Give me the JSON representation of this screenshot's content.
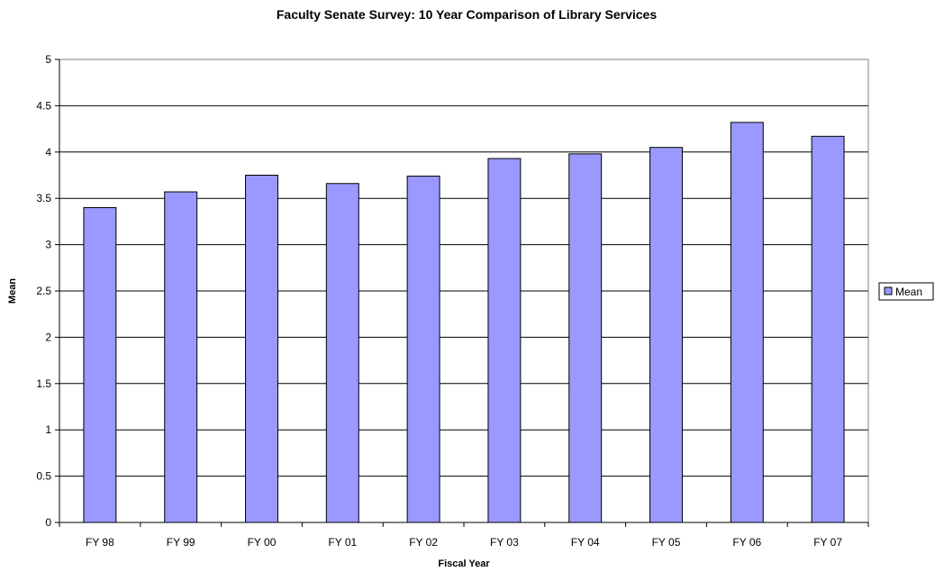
{
  "chart_data": {
    "type": "bar",
    "title": "Faculty Senate Survey: 10 Year Comparison of Library Services",
    "xlabel": "Fiscal Year",
    "ylabel": "Mean",
    "categories": [
      "FY 98",
      "FY 99",
      "FY 00",
      "FY 01",
      "FY 02",
      "FY 03",
      "FY 04",
      "FY 05",
      "FY 06",
      "FY 07"
    ],
    "series": [
      {
        "name": "Mean",
        "values": [
          3.4,
          3.57,
          3.75,
          3.66,
          3.74,
          3.93,
          3.98,
          4.05,
          4.32,
          4.17
        ],
        "color": "#9999ff"
      }
    ],
    "ylim": [
      0,
      5
    ],
    "yticks": [
      "0",
      "0.5",
      "1",
      "1.5",
      "2",
      "2.5",
      "3",
      "3.5",
      "4",
      "4.5",
      "5"
    ],
    "grid": true,
    "legend_position": "right"
  }
}
